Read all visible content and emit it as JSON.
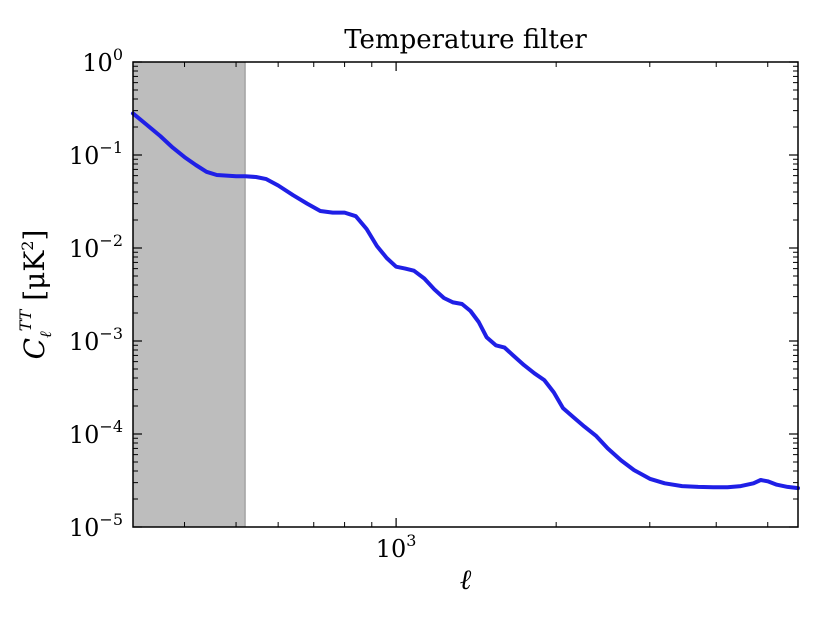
{
  "chart_data": {
    "type": "line",
    "title": "Temperature filter",
    "xlabel": "ℓ",
    "ylabel": "C_ℓ^TT [μK²]",
    "x_scale": "log",
    "y_scale": "log",
    "xlim": [
      320,
      5700
    ],
    "ylim": [
      1e-05,
      1
    ],
    "grid": false,
    "shaded_region": {
      "x": [
        320,
        520
      ],
      "color": "#bdbdbd"
    },
    "x_ticks": [
      {
        "value": 1000,
        "label": "10",
        "exp": "3"
      }
    ],
    "y_ticks": [
      {
        "value": 1,
        "label": "10",
        "exp": "0"
      },
      {
        "value": 0.1,
        "label": "10",
        "exp": "−1"
      },
      {
        "value": 0.01,
        "label": "10",
        "exp": "−2"
      },
      {
        "value": 0.001,
        "label": "10",
        "exp": "−3"
      },
      {
        "value": 0.0001,
        "label": "10",
        "exp": "−4"
      },
      {
        "value": 1e-05,
        "label": "10",
        "exp": "−5"
      }
    ],
    "series": [
      {
        "color": "#1f1fe6",
        "points": [
          [
            320,
            0.28
          ],
          [
            340,
            0.21
          ],
          [
            360,
            0.16
          ],
          [
            380,
            0.12
          ],
          [
            400,
            0.095
          ],
          [
            420,
            0.078
          ],
          [
            440,
            0.066
          ],
          [
            460,
            0.061
          ],
          [
            480,
            0.06
          ],
          [
            500,
            0.059
          ],
          [
            520,
            0.059
          ],
          [
            545,
            0.058
          ],
          [
            570,
            0.055
          ],
          [
            600,
            0.047
          ],
          [
            640,
            0.037
          ],
          [
            680,
            0.03
          ],
          [
            720,
            0.025
          ],
          [
            760,
            0.024
          ],
          [
            800,
            0.024
          ],
          [
            840,
            0.022
          ],
          [
            880,
            0.016
          ],
          [
            920,
            0.0105
          ],
          [
            960,
            0.0078
          ],
          [
            1000,
            0.0063
          ],
          [
            1040,
            0.006
          ],
          [
            1080,
            0.0057
          ],
          [
            1130,
            0.0047
          ],
          [
            1180,
            0.0036
          ],
          [
            1230,
            0.0029
          ],
          [
            1280,
            0.0026
          ],
          [
            1330,
            0.0025
          ],
          [
            1380,
            0.0021
          ],
          [
            1430,
            0.0016
          ],
          [
            1480,
            0.0011
          ],
          [
            1540,
            0.0009
          ],
          [
            1600,
            0.00085
          ],
          [
            1660,
            0.0007
          ],
          [
            1740,
            0.00055
          ],
          [
            1820,
            0.00045
          ],
          [
            1900,
            0.00038
          ],
          [
            1980,
            0.00028
          ],
          [
            2060,
            0.00019
          ],
          [
            2160,
            0.00015
          ],
          [
            2260,
            0.00012
          ],
          [
            2380,
            9.5e-05
          ],
          [
            2500,
            7e-05
          ],
          [
            2650,
            5.2e-05
          ],
          [
            2800,
            4.1e-05
          ],
          [
            3000,
            3.3e-05
          ],
          [
            3200,
            2.95e-05
          ],
          [
            3450,
            2.75e-05
          ],
          [
            3700,
            2.7e-05
          ],
          [
            3950,
            2.68e-05
          ],
          [
            4200,
            2.68e-05
          ],
          [
            4450,
            2.75e-05
          ],
          [
            4700,
            2.95e-05
          ],
          [
            4850,
            3.2e-05
          ],
          [
            5000,
            3.1e-05
          ],
          [
            5200,
            2.85e-05
          ],
          [
            5450,
            2.7e-05
          ],
          [
            5700,
            2.62e-05
          ]
        ]
      }
    ]
  }
}
